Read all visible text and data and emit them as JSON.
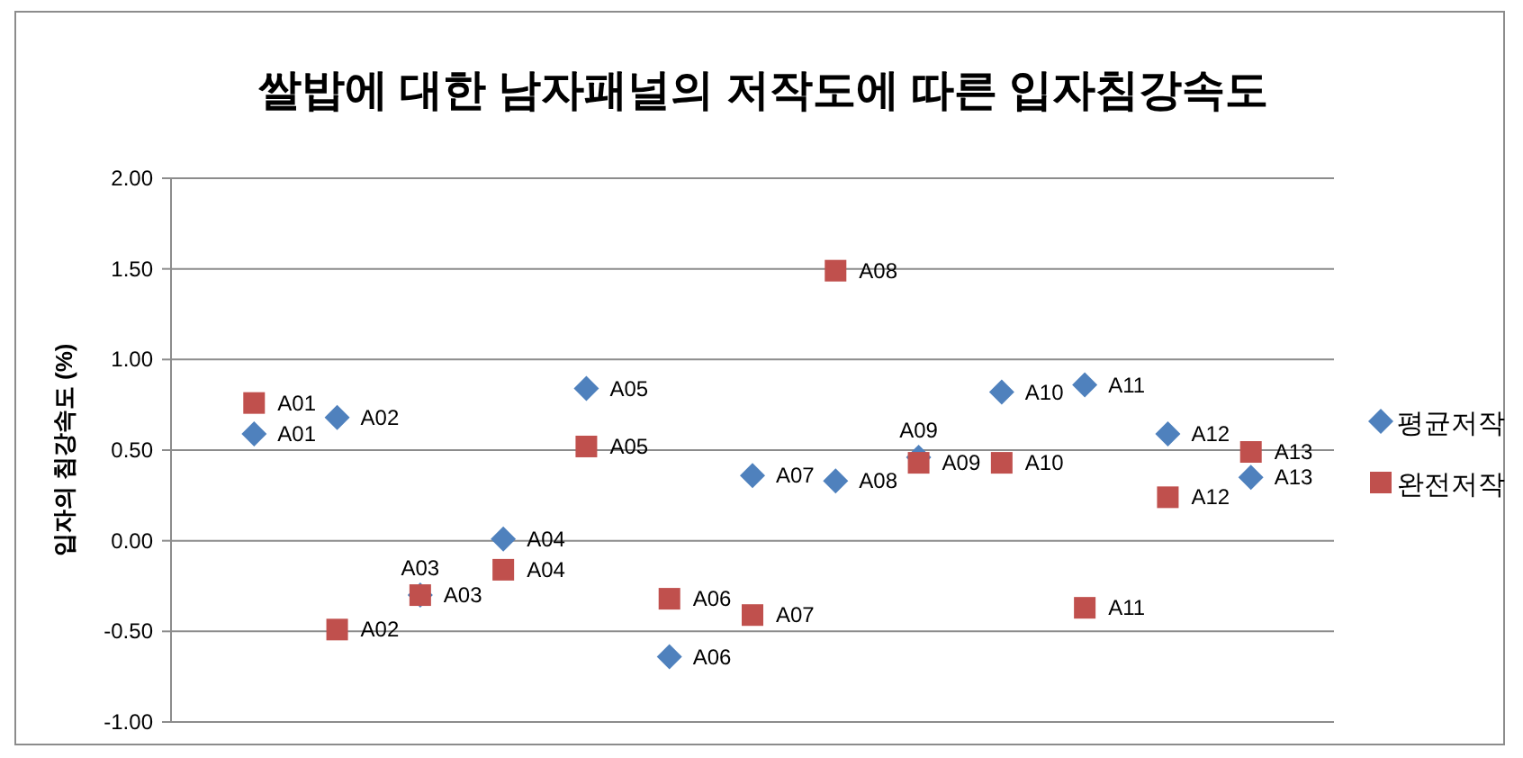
{
  "chart_data": {
    "type": "scatter",
    "title": "쌀밥에 대한 남자패널의 저작도에 따른 입자침강속도",
    "ylabel": "입자의 침강속도 (%)",
    "categories": [
      null,
      null,
      null,
      null,
      null,
      null,
      null,
      null,
      null,
      null,
      null,
      null,
      null
    ],
    "series": [
      {
        "name": "평균저작",
        "color": "#4f81bd",
        "marker": "diamond",
        "values": [
          0.59,
          0.68,
          -0.3,
          0.01,
          0.84,
          -0.64,
          0.36,
          0.33,
          0.46,
          0.82,
          0.86,
          0.59,
          0.35
        ],
        "value_labels": [
          "A01",
          "A02",
          "A03",
          "A04",
          "A05",
          "A06",
          "A07",
          "A08",
          "A09",
          "A10",
          "A11",
          "A12",
          "A13"
        ]
      },
      {
        "name": "완전저작",
        "color": "#c0504d",
        "marker": "square",
        "values": [
          0.76,
          -0.49,
          -0.3,
          -0.16,
          0.52,
          -0.32,
          -0.41,
          1.49,
          0.43,
          0.43,
          -0.37,
          0.24,
          0.49
        ],
        "value_labels": [
          "A01",
          "A02",
          "A03",
          "A04",
          "A05",
          "A06",
          "A07",
          "A08",
          "A09",
          "A10",
          "A11",
          "A12",
          "A13"
        ]
      }
    ],
    "ylim": [
      -1,
      2
    ],
    "yticks": [
      {
        "value": -1,
        "label": "-1.00"
      },
      {
        "value": -0.5,
        "label": "-0.50"
      },
      {
        "value": 0,
        "label": "0.00"
      },
      {
        "value": 0.5,
        "label": "0.50"
      },
      {
        "value": 1,
        "label": "1.00"
      },
      {
        "value": 1.5,
        "label": "1.50"
      },
      {
        "value": 2,
        "label": "2.00"
      }
    ],
    "grid": "y",
    "legend": "right",
    "tick_labels": "y"
  }
}
